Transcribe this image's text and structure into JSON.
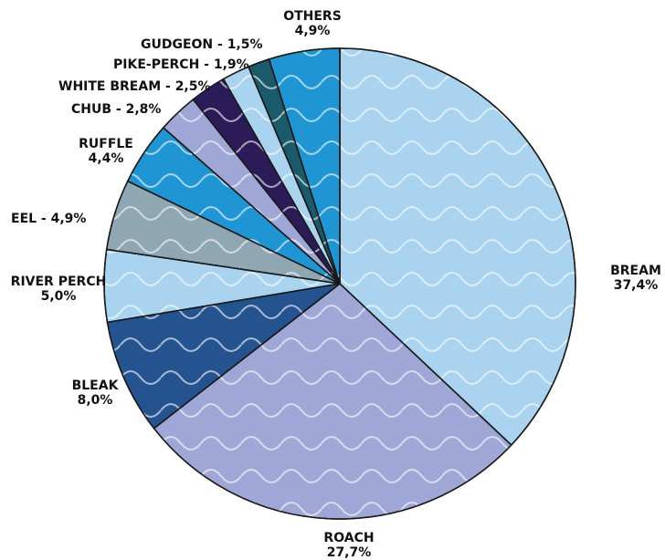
{
  "chart_data": {
    "type": "pie",
    "title": "",
    "start": "top (12 o'clock), clockwise",
    "slices": [
      {
        "label": "BREAM",
        "value": 37.4,
        "display": "37,4%",
        "color": "#a9d3ef"
      },
      {
        "label": "ROACH",
        "value": 27.7,
        "display": "27,7%",
        "color": "#9fa7d6"
      },
      {
        "label": "BLEAK",
        "value": 8.0,
        "display": "8,0%",
        "color": "#25538f"
      },
      {
        "label": "RIVER PERCH",
        "value": 5.0,
        "display": "5,0%",
        "color": "#a9d3ef"
      },
      {
        "label": "EEL",
        "value": 4.9,
        "display": "4,9%",
        "color": "#8fa6b3"
      },
      {
        "label": "RUFFLE",
        "value": 4.4,
        "display": "4,4%",
        "color": "#1f96d3"
      },
      {
        "label": "CHUB",
        "value": 2.8,
        "display": "2,8%",
        "color": "#9fa7d6"
      },
      {
        "label": "WHITE BREAM",
        "value": 2.5,
        "display": "2,5%",
        "color": "#2b1c59"
      },
      {
        "label": "PIKE-PERCH",
        "value": 1.9,
        "display": "1,9%",
        "color": "#a9d3ef"
      },
      {
        "label": "GUDGEON",
        "value": 1.5,
        "display": "1,5%",
        "color": "#1b5a6b"
      },
      {
        "label": "OTHERS",
        "value": 4.9,
        "display": "4,9%",
        "color": "#1f96d3"
      }
    ]
  }
}
